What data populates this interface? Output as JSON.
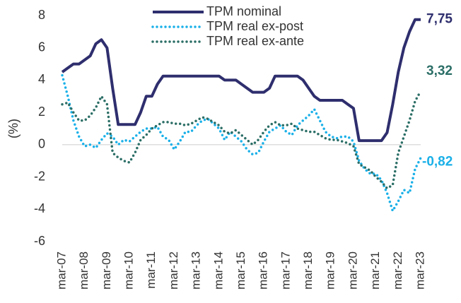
{
  "chart_data": {
    "type": "line",
    "y_label": "(%)",
    "categories": [
      "mar-07",
      null,
      null,
      null,
      "mar-08",
      null,
      null,
      null,
      "mar-09",
      null,
      null,
      null,
      "mar-10",
      null,
      null,
      null,
      "mar-11",
      null,
      null,
      null,
      "mar-12",
      null,
      null,
      null,
      "mar-13",
      null,
      null,
      null,
      "mar-14",
      null,
      null,
      null,
      "mar-15",
      null,
      null,
      null,
      "mar-16",
      null,
      null,
      null,
      "mar-17",
      null,
      null,
      null,
      "mar-18",
      null,
      null,
      null,
      "mar-19",
      null,
      null,
      null,
      "mar-20",
      null,
      null,
      null,
      "mar-21",
      null,
      null,
      null,
      "mar-22",
      null,
      null,
      null,
      "mar-23"
    ],
    "series": [
      {
        "name": "TPM nominal",
        "color": "#2e2e6e",
        "style": "solid",
        "values": [
          4.5,
          4.75,
          5.0,
          5.0,
          5.25,
          5.5,
          6.25,
          6.5,
          6.0,
          3.5,
          1.25,
          1.25,
          1.25,
          1.25,
          2.0,
          3.0,
          3.0,
          3.75,
          4.25,
          4.25,
          4.25,
          4.25,
          4.25,
          4.25,
          4.25,
          4.25,
          4.25,
          4.25,
          4.25,
          4.0,
          4.0,
          4.0,
          3.75,
          3.5,
          3.25,
          3.25,
          3.25,
          3.5,
          4.25,
          4.25,
          4.25,
          4.25,
          4.25,
          4.0,
          3.5,
          3.0,
          2.75,
          2.75,
          2.75,
          2.75,
          2.75,
          2.5,
          2.25,
          0.25,
          0.25,
          0.25,
          0.25,
          0.25,
          0.75,
          2.5,
          4.5,
          6.0,
          7.0,
          7.75,
          7.75
        ],
        "value_labels": [
          null,
          null,
          null,
          null,
          null,
          null,
          null,
          null,
          null,
          null,
          null,
          null,
          null,
          null,
          null,
          null,
          null,
          null,
          null,
          null,
          null,
          null,
          null,
          null,
          null,
          null,
          null,
          null,
          null,
          null,
          null,
          null,
          null,
          null,
          null,
          null,
          null,
          null,
          null,
          null,
          null,
          null,
          null,
          null,
          null,
          null,
          null,
          null,
          null,
          null,
          null,
          null,
          null,
          null,
          null,
          null,
          null,
          null,
          null,
          null,
          null,
          null,
          null,
          null,
          "7,75"
        ]
      },
      {
        "name": "TPM real ex-post",
        "color": "#1ab0e8",
        "style": "dotted",
        "values": [
          4.3,
          3.0,
          1.5,
          0.5,
          -0.1,
          0.0,
          -0.2,
          0.3,
          0.7,
          0.5,
          0.0,
          0.3,
          0.2,
          0.5,
          0.8,
          1.0,
          1.0,
          1.1,
          0.5,
          0.3,
          -0.3,
          0.2,
          0.8,
          0.8,
          1.2,
          1.5,
          1.6,
          1.3,
          1.0,
          0.3,
          0.8,
          0.5,
          0.2,
          -0.3,
          -0.6,
          -0.5,
          0.2,
          0.8,
          1.0,
          1.2,
          0.8,
          0.6,
          1.2,
          1.5,
          1.8,
          2.2,
          1.5,
          0.8,
          0.5,
          0.4,
          0.5,
          0.5,
          0.2,
          -1.0,
          -1.5,
          -1.8,
          -1.8,
          -2.2,
          -3.0,
          -4.1,
          -3.5,
          -2.8,
          -3.0,
          -1.5,
          -0.82
        ],
        "value_labels": [
          null,
          null,
          null,
          null,
          null,
          null,
          null,
          null,
          null,
          null,
          null,
          null,
          null,
          null,
          null,
          null,
          null,
          null,
          null,
          null,
          null,
          null,
          null,
          null,
          null,
          null,
          null,
          null,
          null,
          null,
          null,
          null,
          null,
          null,
          null,
          null,
          null,
          null,
          null,
          null,
          null,
          null,
          null,
          null,
          null,
          null,
          null,
          null,
          null,
          null,
          null,
          null,
          null,
          null,
          null,
          null,
          null,
          null,
          null,
          null,
          null,
          null,
          null,
          null,
          "-0,82"
        ]
      },
      {
        "name": "TPM real ex-ante",
        "color": "#2b6e66",
        "style": "dotted",
        "values": [
          2.5,
          2.6,
          2.0,
          1.5,
          1.5,
          1.8,
          2.3,
          3.0,
          2.5,
          -0.5,
          -0.8,
          -1.0,
          -1.1,
          -0.5,
          0.3,
          0.6,
          1.0,
          1.2,
          1.4,
          1.4,
          1.3,
          1.3,
          1.2,
          1.3,
          1.5,
          1.7,
          1.6,
          1.4,
          1.2,
          0.8,
          0.7,
          0.9,
          0.6,
          0.3,
          0.0,
          0.3,
          0.8,
          1.2,
          1.4,
          1.2,
          1.2,
          1.3,
          1.0,
          0.9,
          0.8,
          0.8,
          0.6,
          0.4,
          0.3,
          0.3,
          0.2,
          0.1,
          -0.1,
          -1.2,
          -1.4,
          -1.6,
          -2.0,
          -2.3,
          -2.7,
          -2.5,
          -0.5,
          0.5,
          1.5,
          2.7,
          3.32
        ],
        "value_labels": [
          null,
          null,
          null,
          null,
          null,
          null,
          null,
          null,
          null,
          null,
          null,
          null,
          null,
          null,
          null,
          null,
          null,
          null,
          null,
          null,
          null,
          null,
          null,
          null,
          null,
          null,
          null,
          null,
          null,
          null,
          null,
          null,
          null,
          null,
          null,
          null,
          null,
          null,
          null,
          null,
          null,
          null,
          null,
          null,
          null,
          null,
          null,
          null,
          null,
          null,
          null,
          null,
          null,
          null,
          null,
          null,
          null,
          null,
          null,
          null,
          null,
          null,
          null,
          null,
          "3,32"
        ]
      }
    ],
    "ylim": [
      -6,
      8
    ],
    "yticks": [
      -6,
      -4,
      -2,
      0,
      2,
      4,
      6,
      8
    ],
    "grid": false,
    "zero_line": true,
    "legend": "top"
  }
}
